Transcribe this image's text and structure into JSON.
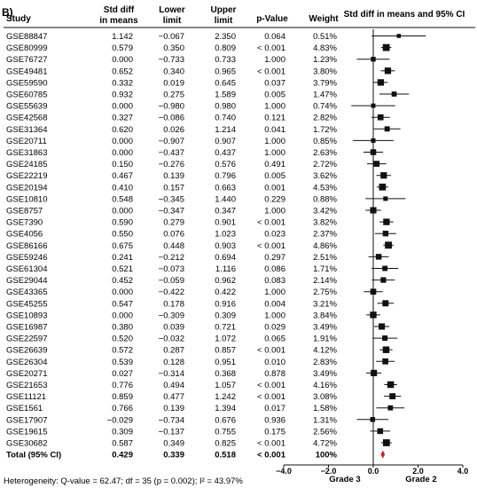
{
  "panel_label": "B)",
  "headers": {
    "study": "Study",
    "smd": [
      "Std diff",
      "in means"
    ],
    "lower": [
      "Lower",
      "limit"
    ],
    "upper": [
      "Upper",
      "limit"
    ],
    "p": "p-Value",
    "weight": "Weight",
    "plot": "Std diff in means and 95% CI"
  },
  "footer": {
    "heterogeneity": "Heterogeneity: Q-value = 62.47; df = 35 (p = 0.002); I² = 43.97%",
    "left_label": "Grade 3",
    "right_label": "Grade 2"
  },
  "colors": {
    "marker": "#111111",
    "summary": "#d0192b",
    "line": "#111111"
  },
  "chart_data": {
    "type": "forest",
    "xlim": [
      -4.0,
      4.0
    ],
    "xticks": [
      "-4.0",
      "-2.0",
      "0.0",
      "2.0",
      "4.0"
    ],
    "xtick_values": [
      -4,
      -2,
      0,
      2,
      4
    ],
    "reference_line": 0,
    "studies": [
      {
        "name": "GSE88847",
        "smd": 1.142,
        "lower": -0.067,
        "upper": 2.35,
        "p": "0.064",
        "weight": "0.51%"
      },
      {
        "name": "GSE80999",
        "smd": 0.579,
        "lower": 0.35,
        "upper": 0.809,
        "p": "< 0.001",
        "weight": "4.83%"
      },
      {
        "name": "GSE76727",
        "smd": 0.0,
        "lower": -0.733,
        "upper": 0.733,
        "p": "1.000",
        "weight": "1.23%"
      },
      {
        "name": "GSE49481",
        "smd": 0.652,
        "lower": 0.34,
        "upper": 0.965,
        "p": "< 0.001",
        "weight": "3.80%"
      },
      {
        "name": "GSE59590",
        "smd": 0.332,
        "lower": 0.019,
        "upper": 0.645,
        "p": "0.037",
        "weight": "3.79%"
      },
      {
        "name": "GSE60785",
        "smd": 0.932,
        "lower": 0.275,
        "upper": 1.589,
        "p": "0.005",
        "weight": "1.47%"
      },
      {
        "name": "GSE55639",
        "smd": 0.0,
        "lower": -0.98,
        "upper": 0.98,
        "p": "1.000",
        "weight": "0.74%"
      },
      {
        "name": "GSE42568",
        "smd": 0.327,
        "lower": -0.086,
        "upper": 0.74,
        "p": "0.121",
        "weight": "2.82%"
      },
      {
        "name": "GSE31364",
        "smd": 0.62,
        "lower": 0.026,
        "upper": 1.214,
        "p": "0.041",
        "weight": "1.72%"
      },
      {
        "name": "GSE20711",
        "smd": 0.0,
        "lower": -0.907,
        "upper": 0.907,
        "p": "1.000",
        "weight": "0.85%"
      },
      {
        "name": "GSE31863",
        "smd": 0.0,
        "lower": -0.437,
        "upper": 0.437,
        "p": "1.000",
        "weight": "2.63%"
      },
      {
        "name": "GSE24185",
        "smd": 0.15,
        "lower": -0.276,
        "upper": 0.576,
        "p": "0.491",
        "weight": "2.72%"
      },
      {
        "name": "GSE22219",
        "smd": 0.467,
        "lower": 0.139,
        "upper": 0.796,
        "p": "0.005",
        "weight": "3.62%"
      },
      {
        "name": "GSE20194",
        "smd": 0.41,
        "lower": 0.157,
        "upper": 0.663,
        "p": "0.001",
        "weight": "4.53%"
      },
      {
        "name": "GSE10810",
        "smd": 0.548,
        "lower": -0.345,
        "upper": 1.44,
        "p": "0.229",
        "weight": "0.88%"
      },
      {
        "name": "GSE8757",
        "smd": 0.0,
        "lower": -0.347,
        "upper": 0.347,
        "p": "1.000",
        "weight": "3.42%"
      },
      {
        "name": "GSE7390",
        "smd": 0.59,
        "lower": 0.279,
        "upper": 0.901,
        "p": "< 0.001",
        "weight": "3.82%"
      },
      {
        "name": "GSE4056",
        "smd": 0.55,
        "lower": 0.076,
        "upper": 1.023,
        "p": "0.023",
        "weight": "2.37%"
      },
      {
        "name": "GSE86166",
        "smd": 0.675,
        "lower": 0.448,
        "upper": 0.903,
        "p": "< 0.001",
        "weight": "4.86%"
      },
      {
        "name": "GSE59246",
        "smd": 0.241,
        "lower": -0.212,
        "upper": 0.694,
        "p": "0.297",
        "weight": "2.51%"
      },
      {
        "name": "GSE61304",
        "smd": 0.521,
        "lower": -0.073,
        "upper": 1.116,
        "p": "0.086",
        "weight": "1.71%"
      },
      {
        "name": "GSE29044",
        "smd": 0.452,
        "lower": -0.059,
        "upper": 0.962,
        "p": "0.083",
        "weight": "2.14%"
      },
      {
        "name": "GSE43365",
        "smd": 0.0,
        "lower": -0.422,
        "upper": 0.422,
        "p": "1.000",
        "weight": "2.75%"
      },
      {
        "name": "GSE45255",
        "smd": 0.547,
        "lower": 0.178,
        "upper": 0.916,
        "p": "0.004",
        "weight": "3.21%"
      },
      {
        "name": "GSE10893",
        "smd": 0.0,
        "lower": -0.309,
        "upper": 0.309,
        "p": "1.000",
        "weight": "3.84%"
      },
      {
        "name": "GSE16987",
        "smd": 0.38,
        "lower": 0.039,
        "upper": 0.721,
        "p": "0.029",
        "weight": "3.49%"
      },
      {
        "name": "GSE22597",
        "smd": 0.52,
        "lower": -0.032,
        "upper": 1.072,
        "p": "0.065",
        "weight": "1.91%"
      },
      {
        "name": "GSE26639",
        "smd": 0.572,
        "lower": 0.287,
        "upper": 0.857,
        "p": "< 0.001",
        "weight": "4.12%"
      },
      {
        "name": "GSE26304",
        "smd": 0.539,
        "lower": 0.128,
        "upper": 0.951,
        "p": "0.010",
        "weight": "2.83%"
      },
      {
        "name": "GSE20271",
        "smd": 0.027,
        "lower": -0.314,
        "upper": 0.368,
        "p": "0.878",
        "weight": "3.49%"
      },
      {
        "name": "GSE21653",
        "smd": 0.776,
        "lower": 0.494,
        "upper": 1.057,
        "p": "< 0.001",
        "weight": "4.16%"
      },
      {
        "name": "GSE11121",
        "smd": 0.859,
        "lower": 0.477,
        "upper": 1.242,
        "p": "< 0.001",
        "weight": "3.08%"
      },
      {
        "name": "GSE1561",
        "smd": 0.766,
        "lower": 0.139,
        "upper": 1.394,
        "p": "0.017",
        "weight": "1.58%"
      },
      {
        "name": "GSE17907",
        "smd": -0.029,
        "lower": -0.734,
        "upper": 0.676,
        "p": "0.936",
        "weight": "1.31%"
      },
      {
        "name": "GSE19615",
        "smd": 0.309,
        "lower": -0.137,
        "upper": 0.755,
        "p": "0.175",
        "weight": "2.56%"
      },
      {
        "name": "GSE30682",
        "smd": 0.587,
        "lower": 0.349,
        "upper": 0.825,
        "p": "< 0.001",
        "weight": "4.72%"
      }
    ],
    "total": {
      "name": "Total (95% CI)",
      "smd": 0.429,
      "lower": 0.339,
      "upper": 0.518,
      "p": "< 0.001",
      "weight": "100%"
    }
  }
}
